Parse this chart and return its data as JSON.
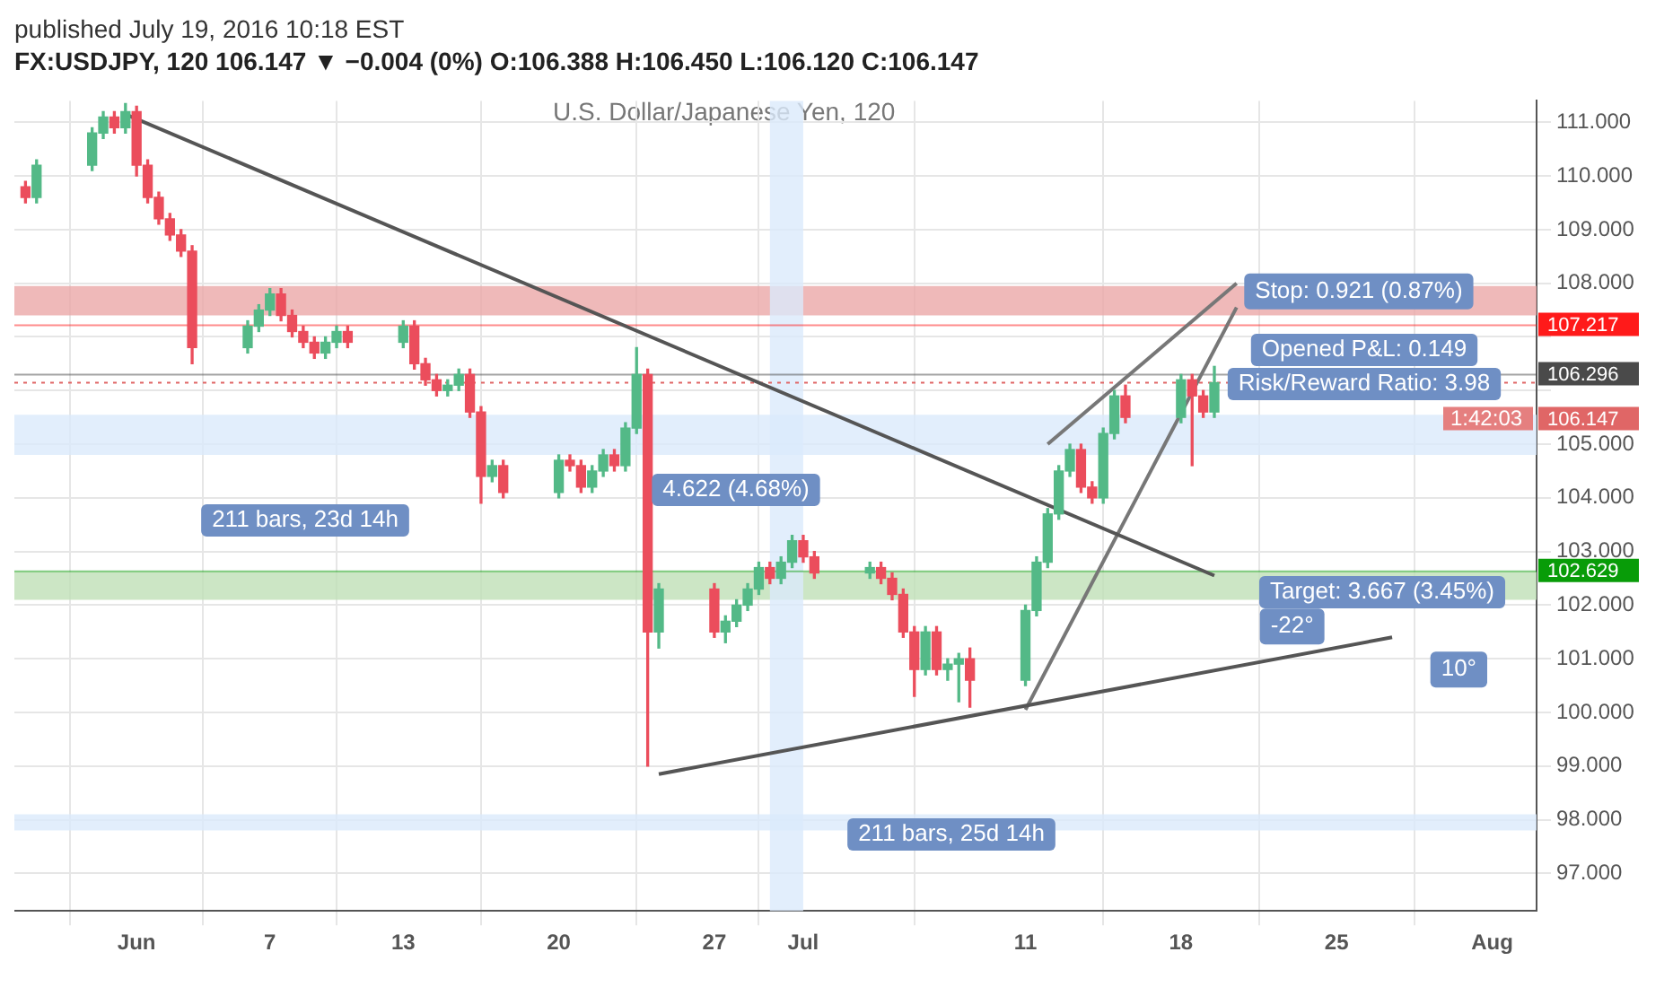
{
  "chart_data": {
    "type": "candlestick",
    "title": "FX:USDJPY, 120 106.147 ▼ −0.004 (0%) O:106.388 H:106.450 L:106.120 C:106.147",
    "subtitle": "U.S. Dollar/Japanese Yen, 120",
    "x": [
      "2016-05-27T00:00",
      "2016-05-27T12:00",
      "2016-05-30T00:00",
      "2016-05-30T12:00",
      "2016-05-31T00:00",
      "2016-05-31T12:00",
      "2016-06-01T00:00",
      "2016-06-01T12:00",
      "2016-06-02T00:00",
      "2016-06-02T12:00",
      "2016-06-03T00:00",
      "2016-06-03T12:00",
      "2016-06-06T00:00",
      "2016-06-06T12:00",
      "2016-06-07T00:00",
      "2016-06-07T12:00",
      "2016-06-08T00:00",
      "2016-06-08T12:00",
      "2016-06-09T00:00",
      "2016-06-09T12:00",
      "2016-06-10T00:00",
      "2016-06-10T12:00",
      "2016-06-13T00:00",
      "2016-06-13T12:00",
      "2016-06-14T00:00",
      "2016-06-14T12:00",
      "2016-06-15T00:00",
      "2016-06-15T12:00",
      "2016-06-16T00:00",
      "2016-06-16T12:00",
      "2016-06-17T00:00",
      "2016-06-17T12:00",
      "2016-06-20T00:00",
      "2016-06-20T12:00",
      "2016-06-21T00:00",
      "2016-06-21T12:00",
      "2016-06-22T00:00",
      "2016-06-22T12:00",
      "2016-06-23T00:00",
      "2016-06-23T12:00",
      "2016-06-24T00:00",
      "2016-06-24T12:00",
      "2016-06-27T00:00",
      "2016-06-27T12:00",
      "2016-06-28T00:00",
      "2016-06-28T12:00",
      "2016-06-29T00:00",
      "2016-06-29T12:00",
      "2016-06-30T00:00",
      "2016-06-30T12:00",
      "2016-07-01T00:00",
      "2016-07-01T12:00",
      "2016-07-04T00:00",
      "2016-07-04T12:00",
      "2016-07-05T00:00",
      "2016-07-05T12:00",
      "2016-07-06T00:00",
      "2016-07-06T12:00",
      "2016-07-07T00:00",
      "2016-07-07T12:00",
      "2016-07-08T00:00",
      "2016-07-08T12:00",
      "2016-07-11T00:00",
      "2016-07-11T12:00",
      "2016-07-12T00:00",
      "2016-07-12T12:00",
      "2016-07-13T00:00",
      "2016-07-13T12:00",
      "2016-07-14T00:00",
      "2016-07-14T12:00",
      "2016-07-15T00:00",
      "2016-07-15T12:00",
      "2016-07-18T00:00",
      "2016-07-18T12:00",
      "2016-07-19T00:00",
      "2016-07-19T12:00"
    ],
    "ohlc": [
      [
        109.8,
        109.9,
        109.5,
        109.6
      ],
      [
        109.6,
        110.3,
        109.5,
        110.2
      ],
      [
        110.2,
        110.9,
        110.1,
        110.8
      ],
      [
        110.8,
        111.2,
        110.7,
        111.1
      ],
      [
        111.1,
        111.2,
        110.8,
        110.9
      ],
      [
        110.9,
        111.35,
        110.8,
        111.2
      ],
      [
        111.2,
        111.3,
        110.0,
        110.2
      ],
      [
        110.2,
        110.3,
        109.5,
        109.6
      ],
      [
        109.6,
        109.7,
        109.1,
        109.2
      ],
      [
        109.2,
        109.3,
        108.8,
        108.9
      ],
      [
        108.9,
        109.0,
        108.5,
        108.6
      ],
      [
        108.6,
        108.7,
        106.5,
        106.8
      ],
      [
        106.8,
        107.3,
        106.7,
        107.2
      ],
      [
        107.2,
        107.6,
        107.1,
        107.5
      ],
      [
        107.5,
        107.9,
        107.4,
        107.8
      ],
      [
        107.8,
        107.9,
        107.3,
        107.4
      ],
      [
        107.4,
        107.5,
        107.0,
        107.1
      ],
      [
        107.1,
        107.2,
        106.8,
        106.9
      ],
      [
        106.9,
        107.0,
        106.6,
        106.7
      ],
      [
        106.7,
        107.0,
        106.6,
        106.9
      ],
      [
        106.9,
        107.2,
        106.8,
        107.1
      ],
      [
        107.1,
        107.2,
        106.8,
        106.9
      ],
      [
        106.9,
        107.3,
        106.8,
        107.2
      ],
      [
        107.2,
        107.3,
        106.4,
        106.5
      ],
      [
        106.5,
        106.6,
        106.1,
        106.2
      ],
      [
        106.2,
        106.3,
        105.9,
        106.0
      ],
      [
        106.0,
        106.2,
        105.9,
        106.1
      ],
      [
        106.1,
        106.4,
        106.0,
        106.3
      ],
      [
        106.3,
        106.4,
        105.5,
        105.6
      ],
      [
        105.6,
        105.7,
        103.9,
        104.4
      ],
      [
        104.4,
        104.7,
        104.3,
        104.6
      ],
      [
        104.6,
        104.7,
        104.0,
        104.1
      ],
      [
        104.1,
        104.8,
        104.0,
        104.7
      ],
      [
        104.7,
        104.8,
        104.5,
        104.6
      ],
      [
        104.6,
        104.7,
        104.1,
        104.2
      ],
      [
        104.2,
        104.6,
        104.1,
        104.5
      ],
      [
        104.5,
        104.9,
        104.4,
        104.8
      ],
      [
        104.8,
        104.9,
        104.5,
        104.6
      ],
      [
        104.6,
        105.4,
        104.5,
        105.3
      ],
      [
        105.3,
        106.8,
        105.2,
        106.3
      ],
      [
        106.3,
        106.4,
        99.0,
        101.5
      ],
      [
        101.5,
        102.4,
        101.2,
        102.3
      ],
      [
        102.3,
        102.4,
        101.4,
        101.5
      ],
      [
        101.5,
        101.8,
        101.3,
        101.7
      ],
      [
        101.7,
        102.1,
        101.6,
        102.0
      ],
      [
        102.0,
        102.4,
        101.9,
        102.3
      ],
      [
        102.3,
        102.8,
        102.2,
        102.7
      ],
      [
        102.7,
        102.8,
        102.4,
        102.5
      ],
      [
        102.5,
        102.9,
        102.4,
        102.8
      ],
      [
        102.8,
        103.3,
        102.7,
        103.2
      ],
      [
        103.2,
        103.3,
        102.8,
        102.9
      ],
      [
        102.9,
        103.0,
        102.5,
        102.6
      ],
      [
        102.6,
        102.8,
        102.5,
        102.7
      ],
      [
        102.7,
        102.8,
        102.4,
        102.5
      ],
      [
        102.5,
        102.6,
        102.1,
        102.2
      ],
      [
        102.2,
        102.3,
        101.4,
        101.5
      ],
      [
        101.5,
        101.6,
        100.3,
        100.8
      ],
      [
        100.8,
        101.6,
        100.7,
        101.5
      ],
      [
        101.5,
        101.6,
        100.7,
        100.8
      ],
      [
        100.8,
        101.0,
        100.6,
        100.9
      ],
      [
        100.9,
        101.1,
        100.2,
        101.0
      ],
      [
        101.0,
        101.2,
        100.1,
        100.6
      ],
      [
        100.6,
        102.0,
        100.5,
        101.9
      ],
      [
        101.9,
        102.9,
        101.8,
        102.8
      ],
      [
        102.8,
        103.8,
        102.7,
        103.7
      ],
      [
        103.7,
        104.6,
        103.6,
        104.5
      ],
      [
        104.5,
        105.0,
        104.4,
        104.9
      ],
      [
        104.9,
        105.0,
        104.1,
        104.2
      ],
      [
        104.2,
        104.3,
        103.9,
        104.0
      ],
      [
        104.0,
        105.3,
        103.9,
        105.2
      ],
      [
        105.2,
        106.0,
        105.1,
        105.9
      ],
      [
        105.9,
        106.1,
        105.4,
        105.5
      ],
      [
        105.5,
        106.3,
        105.4,
        106.2
      ],
      [
        106.2,
        106.3,
        104.6,
        105.9
      ],
      [
        105.9,
        106.0,
        105.5,
        105.6
      ],
      [
        105.6,
        106.45,
        105.5,
        106.147
      ]
    ],
    "series": [
      {
        "type": "line",
        "color": "#555555",
        "x": [
          "2016-05-31T12:00",
          "2016-07-19T12:00"
        ],
        "values": [
          111.15,
          102.55
        ]
      },
      {
        "type": "line",
        "color": "#555555",
        "x": [
          "2016-06-24T12:00",
          "2016-07-27T12:00"
        ],
        "values": [
          98.85,
          101.4
        ]
      },
      {
        "type": "line",
        "color": "#777777",
        "x": [
          "2016-07-12T00:00",
          "2016-07-20T12:00"
        ],
        "values": [
          105.0,
          108.0
        ]
      },
      {
        "type": "line",
        "color": "#777777",
        "x": [
          "2016-07-11T00:00",
          "2016-07-20T12:00"
        ],
        "values": [
          100.05,
          107.55
        ]
      }
    ],
    "xlim": [
      "2016-05-26T12:00",
      "2016-08-03T00:00"
    ],
    "xticks": [
      {
        "value": "2016-06-01",
        "label": "Jun"
      },
      {
        "value": "2016-06-07",
        "label": "7"
      },
      {
        "value": "2016-06-13",
        "label": "13"
      },
      {
        "value": "2016-06-20",
        "label": "20"
      },
      {
        "value": "2016-06-27",
        "label": "27"
      },
      {
        "value": "2016-07-01",
        "label": "Jul"
      },
      {
        "value": "2016-07-11",
        "label": "11"
      },
      {
        "value": "2016-07-18",
        "label": "18"
      },
      {
        "value": "2016-07-25",
        "label": "25"
      },
      {
        "value": "2016-08-01",
        "label": "Aug"
      }
    ],
    "ylim": [
      96.3,
      111.4
    ],
    "yticks": [
      {
        "value": 97,
        "label": "97.000"
      },
      {
        "value": 98,
        "label": "98.000"
      },
      {
        "value": 99,
        "label": "99.000"
      },
      {
        "value": 100,
        "label": "100.000"
      },
      {
        "value": 101,
        "label": "101.000"
      },
      {
        "value": 102,
        "label": "102.000"
      },
      {
        "value": 103,
        "label": "103.000"
      },
      {
        "value": 104,
        "label": "104.000"
      },
      {
        "value": 105,
        "label": "105.000"
      },
      {
        "value": 106,
        "label": null
      },
      {
        "value": 107,
        "label": null
      },
      {
        "value": 108,
        "label": "108.000"
      },
      {
        "value": 109,
        "label": "109.000"
      },
      {
        "value": 110,
        "label": "110.000"
      },
      {
        "value": 111,
        "label": "111.000"
      }
    ],
    "grid": true,
    "legend": false,
    "marker": "none",
    "line_style": "solid",
    "bands": [
      {
        "axis": "y",
        "from": 107.4,
        "to": 107.95,
        "color": "#eba7a7"
      },
      {
        "axis": "y",
        "from": 102.1,
        "to": 102.62,
        "color": "#bfe0b6"
      },
      {
        "axis": "y",
        "from": 104.8,
        "to": 105.55,
        "color": "#dbeafb"
      },
      {
        "axis": "x",
        "from": "2016-06-29T12:00",
        "to": "2016-07-01T00:00",
        "color": "#dbeafb"
      },
      {
        "axis": "y",
        "from": 97.8,
        "to": 98.1,
        "color": "#dbeafb"
      }
    ],
    "ref_lines": [
      {
        "axis": "y",
        "value": 106.147,
        "label": "106.147",
        "color": "#e06666",
        "line_style": "dotted"
      },
      {
        "axis": "y",
        "value": 107.217,
        "label": "107.217",
        "color": "#ff1a1a",
        "line_style": "solid"
      },
      {
        "axis": "y",
        "value": 106.296,
        "label": "106.296",
        "color": "#4a4a4a",
        "line_style": "solid"
      },
      {
        "axis": "y",
        "value": 102.629,
        "label": "102.629",
        "color": "#089c08",
        "line_style": "solid"
      }
    ],
    "annotations": [
      "published July 19, 2016 10:18 EST",
      "1:42:03",
      "211 bars, 23d 14h",
      "4.622 (4.68%)",
      "211 bars, 25d 14h",
      "Opened P&L: 0.149",
      "Risk/Reward Ratio: 3.98",
      {
        "text": "Stop: 0.921 (0.87%)",
        "x": "2016-07-26T00:00",
        "y": 107.85
      },
      "Target: 3.667 (3.45%)",
      {
        "text": "-22°",
        "x": "2016-07-23T00:00",
        "y": 101.6
      },
      {
        "text": "10°",
        "x": "2016-07-30T12:00",
        "y": 100.8
      }
    ]
  }
}
